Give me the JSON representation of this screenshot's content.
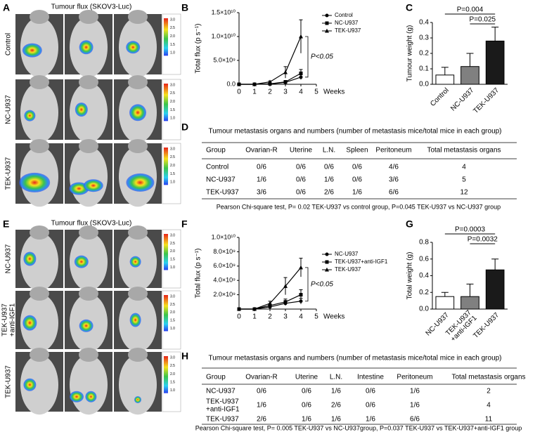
{
  "panel_labels": [
    "A",
    "B",
    "C",
    "D",
    "E",
    "F",
    "G",
    "H"
  ],
  "imaging": [
    {
      "title": "Tumour flux (SKOV3-Luc)",
      "rows": [
        "Control",
        "NC-U937",
        "TEK-U937"
      ]
    },
    {
      "title": "Tumour flux (SKOV3-Luc)",
      "rows": [
        "NC-U937",
        "TEK-U937\n+anti-IGF1",
        "TEK-U937"
      ]
    }
  ],
  "colorbar_labels": [
    "3.0",
    "2.5",
    "2.0",
    "1.5",
    "1.0"
  ],
  "chart_data": [
    {
      "type": "line",
      "x": [
        0,
        1,
        2,
        3,
        4
      ],
      "xlim": [
        0,
        5
      ],
      "xticks": [
        0,
        1,
        2,
        3,
        4,
        5
      ],
      "xlabel": "Weeks",
      "ylabel": "Total flux (p s⁻¹)",
      "ylim": [
        0,
        15000000000
      ],
      "yticks": [
        {
          "value": 0,
          "label": "0.0"
        },
        {
          "value": 5000000000,
          "label": "5.0×10⁹"
        },
        {
          "value": 10000000000,
          "label": "1.0×10¹⁰"
        },
        {
          "value": 15000000000,
          "label": "1.5×10¹⁰"
        }
      ],
      "legend": "right",
      "annotation": "P<0.05",
      "series": [
        {
          "name": "Control",
          "color": "#000000",
          "marker": "circle",
          "values": [
            0,
            0,
            50000000,
            400000000,
            1500000000
          ],
          "errors": [
            0,
            0,
            50000000,
            200000000,
            500000000
          ]
        },
        {
          "name": "NC-U937",
          "color": "#000000",
          "marker": "square",
          "values": [
            0,
            0,
            100000000,
            500000000,
            2300000000
          ],
          "errors": [
            0,
            0,
            100000000,
            300000000,
            800000000
          ]
        },
        {
          "name": "TEK-U937",
          "color": "#000000",
          "marker": "triangle",
          "values": [
            0,
            0,
            500000000,
            2500000000,
            10000000000
          ],
          "errors": [
            0,
            0,
            200000000,
            1200000000,
            3500000000
          ]
        }
      ]
    },
    {
      "type": "bar",
      "categories": [
        "Control",
        "NC-U937",
        "TEK-U937"
      ],
      "values": [
        0.06,
        0.115,
        0.28
      ],
      "errors": [
        0.05,
        0.085,
        0.09
      ],
      "colors": [
        "#ffffff",
        "#808080",
        "#1a1a1a"
      ],
      "ylabel": "Tumour weight (g)",
      "ylim": [
        0,
        0.4
      ],
      "yticks": [
        {
          "value": 0,
          "label": "0.0"
        },
        0.1,
        0.2,
        0.3,
        0.4
      ],
      "annotations": [
        "P=0.004",
        "P=0.025"
      ]
    },
    {
      "type": "line",
      "x": [
        0,
        1,
        2,
        3,
        4
      ],
      "xlim": [
        0,
        5
      ],
      "xticks": [
        0,
        1,
        2,
        3,
        4,
        5
      ],
      "xlabel": "Weeks",
      "ylabel": "Total flux (p s⁻¹)",
      "ylim": [
        0,
        10000000000
      ],
      "yticks": [
        {
          "value": 2000000000,
          "label": "2.0×10⁹"
        },
        {
          "value": 4000000000,
          "label": "4.0×10⁹"
        },
        {
          "value": 6000000000,
          "label": "6.0×10⁹"
        },
        {
          "value": 8000000000,
          "label": "8.0×10⁹"
        },
        {
          "value": 10000000000,
          "label": "1.0×10¹⁰"
        }
      ],
      "legend": "right",
      "annotation": "P<0.05",
      "series": [
        {
          "name": "NC-U937",
          "color": "#000000",
          "marker": "circle",
          "values": [
            0,
            0,
            300000000,
            800000000,
            1100000000
          ],
          "errors": [
            0,
            0,
            100000000,
            300000000,
            400000000
          ]
        },
        {
          "name": "TEK-U937+anti-IGF1",
          "color": "#000000",
          "marker": "square",
          "values": [
            0,
            0,
            500000000,
            1000000000,
            2000000000
          ],
          "errors": [
            0,
            0,
            200000000,
            400000000,
            700000000
          ]
        },
        {
          "name": "TEK-U937",
          "color": "#000000",
          "marker": "triangle",
          "values": [
            0,
            0,
            800000000,
            3200000000,
            5800000000
          ],
          "errors": [
            0,
            0,
            300000000,
            1200000000,
            1300000000
          ]
        }
      ]
    },
    {
      "type": "bar",
      "categories": [
        "NC-U937",
        "TEK-U937\n+anti-IGF1",
        "TEK-U937"
      ],
      "values": [
        0.15,
        0.15,
        0.47
      ],
      "errors": [
        0.05,
        0.15,
        0.13
      ],
      "colors": [
        "#ffffff",
        "#808080",
        "#1a1a1a"
      ],
      "ylabel": "Total weight (g)",
      "ylim": [
        0,
        0.8
      ],
      "yticks": [
        {
          "value": 0,
          "label": "0.0"
        },
        0.2,
        0.4,
        0.6,
        0.8
      ],
      "annotations": [
        "P=0.0003",
        "P=0.0032"
      ]
    }
  ],
  "tables": [
    {
      "title": "Tumour metastasis organs and numbers (number of metastasis mice/total mice in each group)",
      "header": [
        "Group",
        "Ovarian-R",
        "Uterine",
        "L.N.",
        "Spleen",
        "Peritoneum",
        "Total metastasis organs"
      ],
      "rows": [
        [
          "Control",
          "0/6",
          "0/6",
          "0/6",
          "0/6",
          "4/6",
          "4"
        ],
        [
          "NC-U937",
          "1/6",
          "0/6",
          "1/6",
          "0/6",
          "3/6",
          "5"
        ],
        [
          "TEK-U937",
          "3/6",
          "0/6",
          "2/6",
          "1/6",
          "6/6",
          "12"
        ]
      ],
      "footnote": "Pearson Chi-square test, P= 0.02 TEK-U937 vs control group, P=0.045 TEK-U937 vs NC-U937 group"
    },
    {
      "title": "Tumour metastasis organs and numbers (number of metastasis mice/total mice in each group)",
      "header": [
        "Group",
        "Ovarian-R",
        "Uterine",
        "L.N.",
        "Intestine",
        "Peritoneum",
        "Total metastasis organs"
      ],
      "rows": [
        [
          "NC-U937",
          "0/6",
          "0/6",
          "1/6",
          "0/6",
          "1/6",
          "2"
        ],
        [
          "TEK-U937\n+anti-IGF1",
          "1/6",
          "0/6",
          "2/6",
          "0/6",
          "1/6",
          "4"
        ],
        [
          "TEK-U937",
          "2/6",
          "1/6",
          "1/6",
          "1/6",
          "6/6",
          "11"
        ]
      ],
      "footnote": "Pearson Chi-square test, P= 0.005 TEK-U937 vs NC-U937group, P=0.037 TEK-U937 vs TEK-U937+anti-IGF1 group"
    }
  ]
}
